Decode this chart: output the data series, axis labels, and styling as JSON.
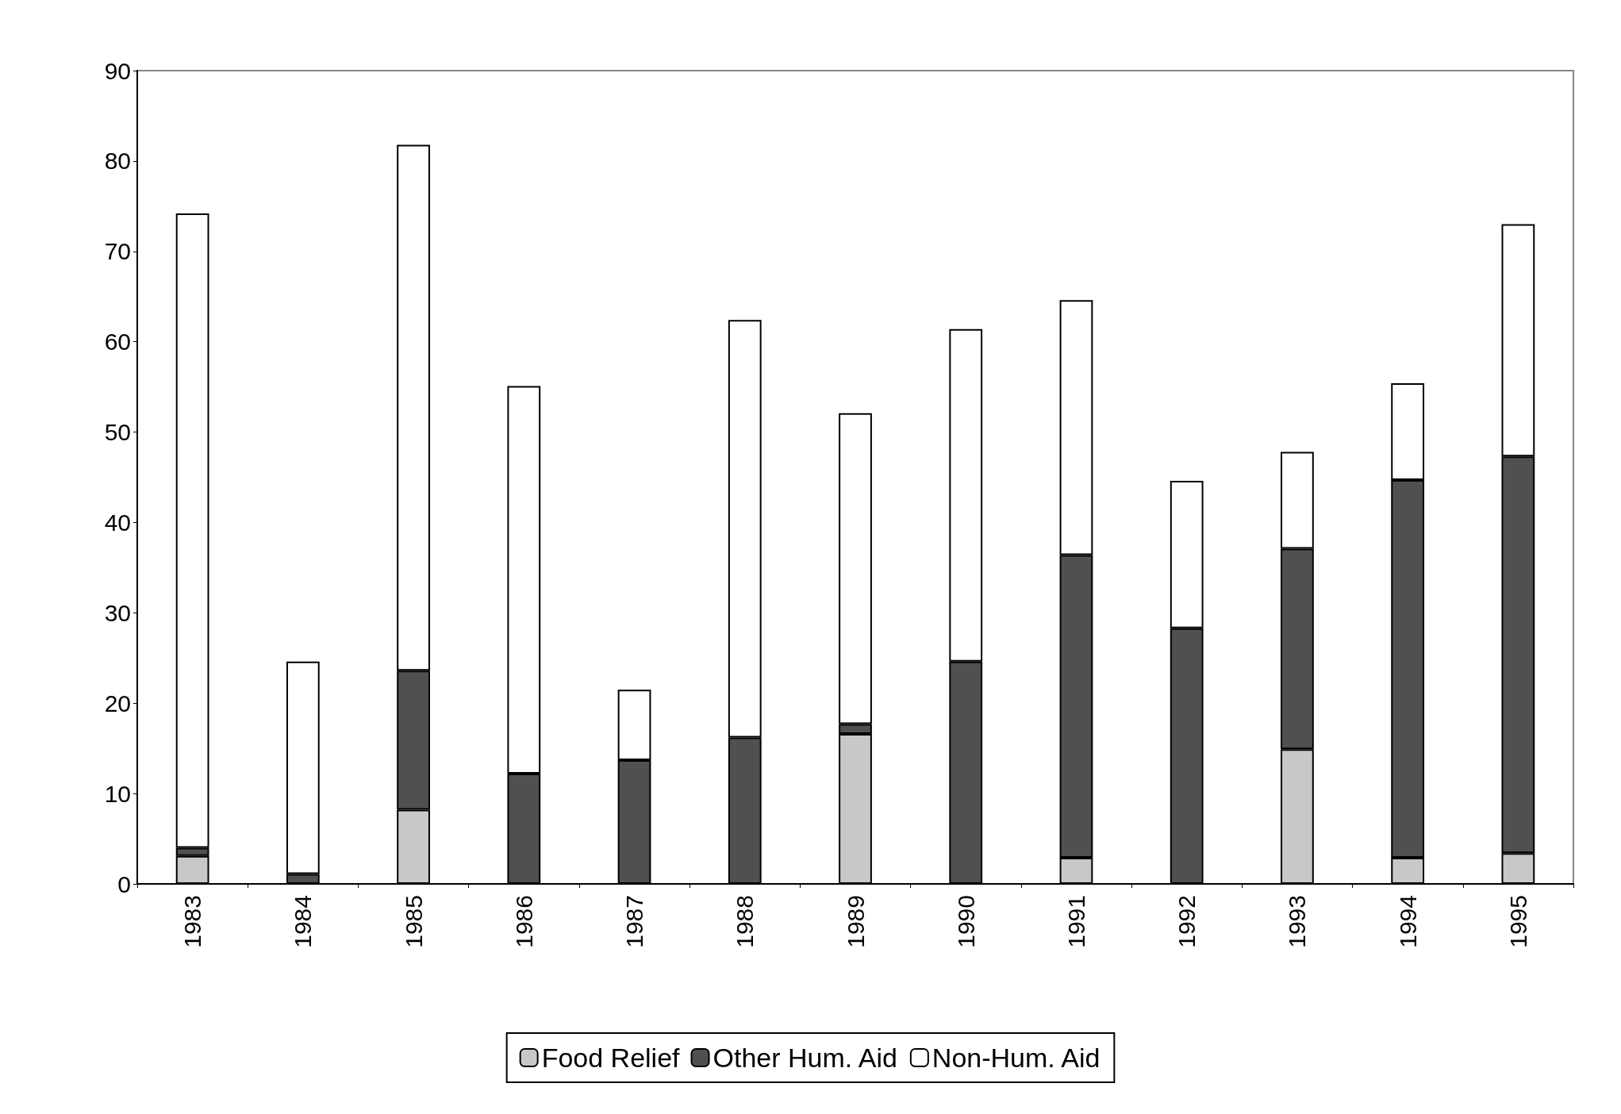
{
  "chart_data": {
    "type": "bar",
    "stacked": true,
    "categories": [
      "1983",
      "1984",
      "1985",
      "1986",
      "1987",
      "1988",
      "1989",
      "1990",
      "1991",
      "1992",
      "1993",
      "1994",
      "1995"
    ],
    "series": [
      {
        "name": "Food Relief",
        "color": "#c8c8c8",
        "values": [
          3.1,
          0,
          8.2,
          0,
          0,
          0,
          16.6,
          0,
          2.9,
          0,
          14.9,
          2.9,
          3.4
        ]
      },
      {
        "name": "Other Hum. Aid",
        "color": "#505050",
        "values": [
          0.9,
          1.1,
          15.4,
          12.2,
          13.7,
          16.2,
          1.1,
          24.6,
          33.5,
          28.3,
          22.2,
          41.8,
          43.9
        ]
      },
      {
        "name": "Non-Hum. Aid",
        "color": "#ffffff",
        "values": [
          70.2,
          23.5,
          58.2,
          42.9,
          7.8,
          46.2,
          34.4,
          36.8,
          28.2,
          16.3,
          10.7,
          10.7,
          25.7
        ]
      }
    ],
    "ylim": [
      0,
      90
    ],
    "yticks": [
      0,
      10,
      20,
      30,
      40,
      50,
      60,
      70,
      80,
      90
    ],
    "grid": false,
    "legend": "bottom"
  }
}
